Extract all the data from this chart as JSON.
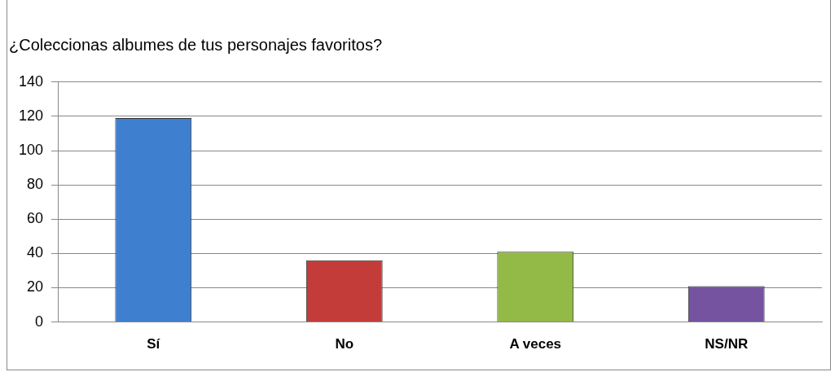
{
  "chart_data": {
    "type": "bar",
    "title": "¿Coleccionas albumes de tus personajes favoritos?",
    "categories": [
      "Sí",
      "No",
      "A veces",
      "NS/NR"
    ],
    "values": [
      119,
      36,
      41,
      21
    ],
    "colors": [
      "#3f7fcf",
      "#c43c3a",
      "#93b947",
      "#7553a0"
    ],
    "ylim": [
      0,
      140
    ],
    "yticks": [
      0,
      20,
      40,
      60,
      80,
      100,
      120,
      140
    ],
    "grid": "y",
    "legend": false
  }
}
